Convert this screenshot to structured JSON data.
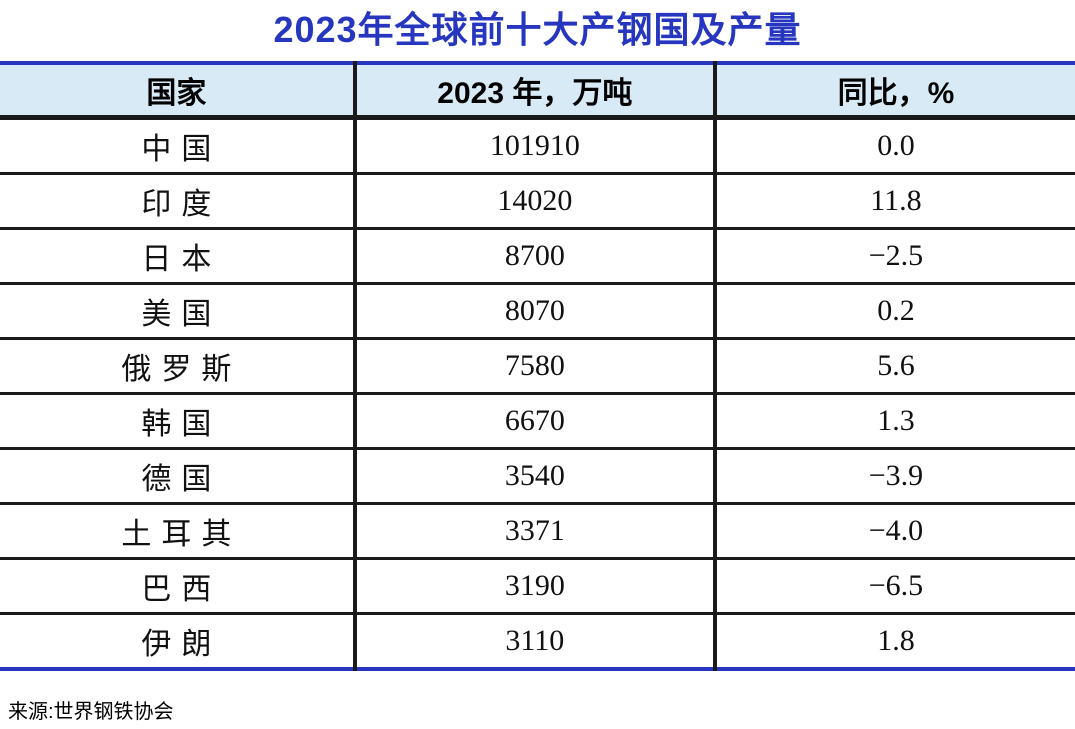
{
  "title": "2023年全球前十大产钢国及产量",
  "table": {
    "columns": [
      "国家",
      "2023 年，万吨",
      "同比，%"
    ],
    "rows": [
      {
        "country": "中国",
        "production": "101910",
        "yoy": "0.0"
      },
      {
        "country": "印度",
        "production": "14020",
        "yoy": "11.8"
      },
      {
        "country": "日本",
        "production": "8700",
        "yoy": "−2.5"
      },
      {
        "country": "美国",
        "production": "8070",
        "yoy": "0.2"
      },
      {
        "country": "俄罗斯",
        "production": "7580",
        "yoy": "5.6"
      },
      {
        "country": "韩国",
        "production": "6670",
        "yoy": "1.3"
      },
      {
        "country": "德国",
        "production": "3540",
        "yoy": "−3.9"
      },
      {
        "country": "土耳其",
        "production": "3371",
        "yoy": "−4.0"
      },
      {
        "country": "巴西",
        "production": "3190",
        "yoy": "−6.5"
      },
      {
        "country": "伊朗",
        "production": "3110",
        "yoy": "1.8"
      }
    ]
  },
  "source": "来源:世界钢铁协会",
  "colors": {
    "accent_blue": "#2636BF",
    "header_bg": "#D7EAF6",
    "line_black": "#1A1A1A"
  },
  "chart_data": {
    "type": "table",
    "title": "2023年全球前十大产钢国及产量",
    "columns": [
      "国家",
      "2023 年，万吨",
      "同比，%"
    ],
    "categories": [
      "中国",
      "印度",
      "日本",
      "美国",
      "俄罗斯",
      "韩国",
      "德国",
      "土耳其",
      "巴西",
      "伊朗"
    ],
    "series": [
      {
        "name": "2023 年，万吨",
        "values": [
          101910,
          14020,
          8700,
          8070,
          7580,
          6670,
          3540,
          3371,
          3190,
          3110
        ]
      },
      {
        "name": "同比，%",
        "values": [
          0.0,
          11.8,
          -2.5,
          0.2,
          5.6,
          1.3,
          -3.9,
          -4.0,
          -6.5,
          1.8
        ]
      }
    ],
    "source": "来源:世界钢铁协会"
  }
}
